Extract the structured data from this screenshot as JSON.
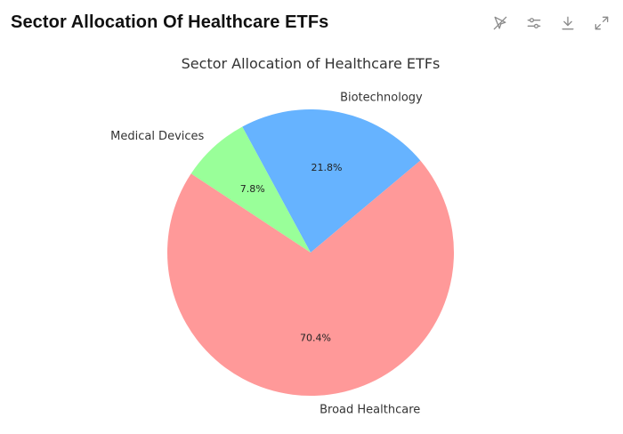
{
  "header": {
    "title": "Sector Allocation Of Healthcare ETFs"
  },
  "toolbar": {
    "buttons": [
      {
        "icon": "pointer-off-icon"
      },
      {
        "icon": "sliders-icon"
      },
      {
        "icon": "download-icon"
      },
      {
        "icon": "expand-icon"
      }
    ]
  },
  "chart_data": {
    "type": "pie",
    "title": "Sector Allocation of Healthcare ETFs",
    "categories": [
      "Biotechnology",
      "Medical Devices",
      "Broad Healthcare"
    ],
    "values": [
      21.8,
      7.8,
      70.4
    ],
    "labels": [
      "21.8%",
      "7.8%",
      "70.4%"
    ],
    "colors": [
      "#66b3ff",
      "#99ff99",
      "#ff9999"
    ],
    "start_angle_deg": 40,
    "direction": "counterclockwise",
    "legend": "none"
  }
}
